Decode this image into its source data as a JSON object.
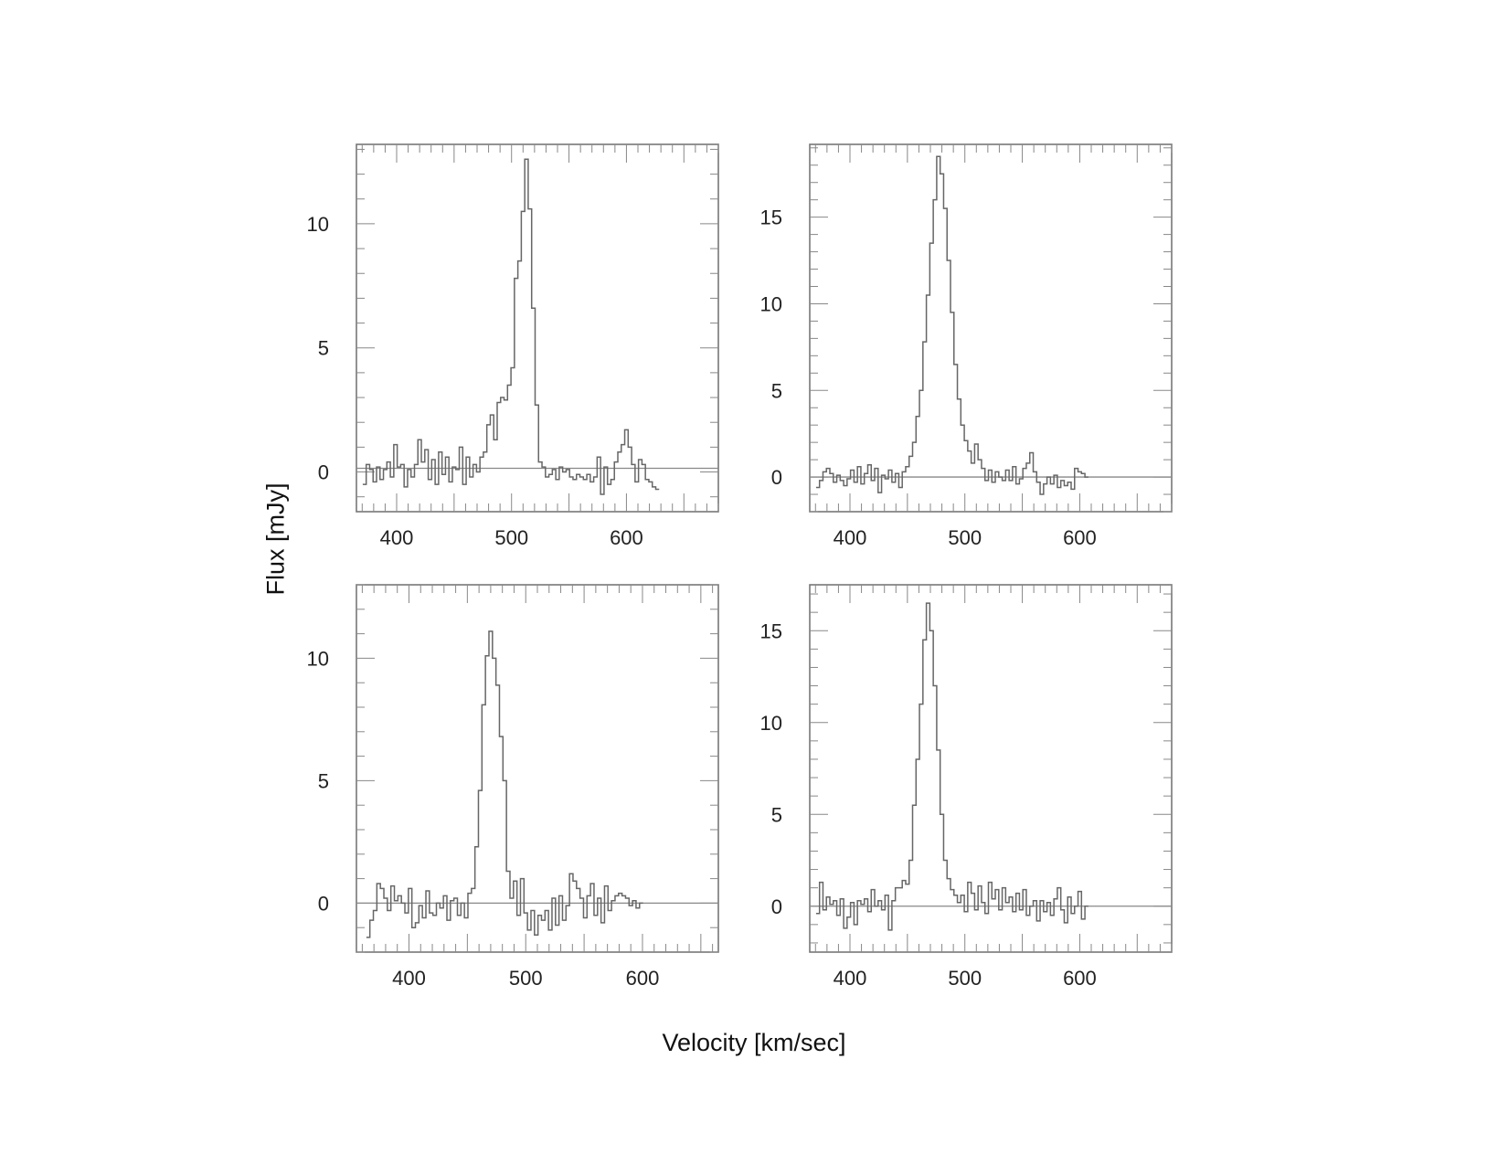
{
  "figure": {
    "xlabel": "Velocity [km/sec]",
    "ylabel": "Flux [mJy]"
  },
  "chart_data": [
    {
      "type": "line",
      "style": "step",
      "position": "top-left",
      "xlim": [
        365,
        680
      ],
      "ylim": [
        -1.6,
        13.2
      ],
      "xticks": [
        400,
        500,
        600
      ],
      "yticks": [
        0,
        5,
        10
      ],
      "baseline": 0.15,
      "x_start": 372,
      "x_step": 3,
      "y": [
        -0.5,
        0.3,
        0.1,
        -0.4,
        0.2,
        -0.3,
        0.1,
        0.4,
        -0.2,
        1.1,
        0.2,
        0.3,
        -0.6,
        0.1,
        -0.2,
        0.3,
        1.3,
        0.4,
        0.9,
        -0.3,
        0.5,
        -0.5,
        0.8,
        -0.1,
        0.6,
        -0.4,
        0.2,
        0.1,
        1.0,
        -0.5,
        0.6,
        -0.2,
        0.3,
        0.0,
        0.6,
        0.8,
        1.9,
        2.3,
        1.3,
        2.8,
        3.0,
        2.9,
        3.5,
        4.2,
        7.8,
        8.5,
        10.5,
        12.6,
        10.6,
        6.6,
        2.7,
        0.4,
        0.2,
        -0.2,
        -0.1,
        0.1,
        -0.3,
        0.2,
        0.0,
        0.1,
        -0.2,
        -0.3,
        -0.1,
        -0.2,
        -0.3,
        -0.1,
        -0.4,
        -0.2,
        0.6,
        -0.9,
        0.2,
        -0.5,
        -0.3,
        0.4,
        0.8,
        1.1,
        1.7,
        1.0,
        0.3,
        -0.4,
        0.5,
        0.3,
        -0.3,
        -0.4,
        -0.6,
        -0.7
      ]
    },
    {
      "type": "line",
      "style": "step",
      "position": "top-right",
      "xlim": [
        365,
        680
      ],
      "ylim": [
        -2,
        19.2
      ],
      "xticks": [
        400,
        500,
        600
      ],
      "yticks": [
        0,
        5,
        10,
        15
      ],
      "baseline": 0,
      "x_start": 372,
      "x_step": 3,
      "y": [
        -0.6,
        -0.2,
        0.3,
        0.5,
        0.2,
        -0.3,
        0.1,
        -0.2,
        -0.5,
        -0.1,
        0.4,
        -0.3,
        0.6,
        -0.4,
        0.2,
        0.7,
        -0.2,
        0.5,
        -0.9,
        0.1,
        -0.1,
        0.4,
        -0.3,
        0.2,
        -0.6,
        0.3,
        0.6,
        1.2,
        2.0,
        3.5,
        5.0,
        7.8,
        10.5,
        13.5,
        16.0,
        18.5,
        17.5,
        15.5,
        12.5,
        9.5,
        6.5,
        4.5,
        3.0,
        2.1,
        1.5,
        0.8,
        1.9,
        1.0,
        0.5,
        -0.2,
        0.4,
        -0.3,
        0.3,
        0.0,
        -0.2,
        0.4,
        -0.2,
        0.6,
        -0.4,
        -0.1,
        0.5,
        0.8,
        1.4,
        0.3,
        -0.3,
        -1.0,
        -0.4,
        0.0,
        -0.4,
        0.1,
        -0.6,
        -0.2,
        -0.5,
        -0.3,
        -0.7,
        0.5,
        0.3,
        0.2,
        0.0
      ]
    },
    {
      "type": "line",
      "style": "step",
      "position": "bottom-left",
      "xlim": [
        355,
        665
      ],
      "ylim": [
        -2,
        13
      ],
      "xticks": [
        400,
        500,
        600
      ],
      "yticks": [
        0,
        5,
        10
      ],
      "baseline": 0,
      "x_start": 365,
      "x_step": 3,
      "y": [
        -1.4,
        -0.7,
        -0.3,
        0.8,
        0.6,
        0.2,
        -0.3,
        0.7,
        0.1,
        0.3,
        0.0,
        -0.4,
        0.6,
        -1.0,
        -0.8,
        -0.1,
        -0.6,
        0.5,
        -0.4,
        -0.5,
        0.0,
        -0.2,
        0.3,
        -0.7,
        0.1,
        0.2,
        -0.5,
        0.0,
        -0.6,
        0.4,
        0.6,
        2.3,
        4.6,
        8.1,
        10.1,
        11.1,
        10.0,
        8.9,
        6.8,
        5.0,
        1.3,
        0.2,
        0.9,
        -0.5,
        1.0,
        -0.4,
        -1.1,
        -0.3,
        -1.3,
        -0.5,
        -0.7,
        -0.3,
        -1.1,
        0.2,
        -0.9,
        0.3,
        -0.7,
        -0.1,
        1.2,
        0.9,
        0.6,
        0.2,
        -0.6,
        0.3,
        0.8,
        -0.5,
        0.2,
        -0.8,
        0.7,
        -0.3,
        0.1,
        0.3,
        0.4,
        0.3,
        0.2,
        -0.1,
        0.1,
        -0.2,
        0.0
      ]
    },
    {
      "type": "line",
      "style": "step",
      "position": "bottom-right",
      "xlim": [
        365,
        680
      ],
      "ylim": [
        -2.5,
        17.5
      ],
      "xticks": [
        400,
        500,
        600
      ],
      "yticks": [
        0,
        5,
        10,
        15
      ],
      "baseline": 0,
      "x_start": 372,
      "x_step": 3,
      "y": [
        -0.4,
        1.3,
        -0.2,
        0.5,
        0.1,
        0.3,
        -0.5,
        0.4,
        -1.2,
        -0.6,
        0.2,
        -1.0,
        0.3,
        0.1,
        0.4,
        -0.3,
        0.9,
        0.0,
        0.3,
        -0.2,
        0.6,
        -1.3,
        0.3,
        1.0,
        1.0,
        1.4,
        1.2,
        2.5,
        5.5,
        8.0,
        11.0,
        14.5,
        16.5,
        15.0,
        12.0,
        8.5,
        5.0,
        2.5,
        1.5,
        0.9,
        0.6,
        0.2,
        0.6,
        -0.3,
        1.3,
        0.7,
        -0.2,
        1.1,
        0.2,
        -0.4,
        1.3,
        0.4,
        0.9,
        -0.2,
        1.0,
        0.2,
        0.5,
        -0.3,
        0.7,
        -0.2,
        0.9,
        -0.5,
        0.0,
        0.3,
        -0.8,
        0.3,
        -0.3,
        0.2,
        -0.5,
        0.4,
        1.0,
        -0.2,
        -0.9,
        0.5,
        -0.4,
        0.0,
        0.8,
        -0.7,
        0.0
      ]
    }
  ]
}
